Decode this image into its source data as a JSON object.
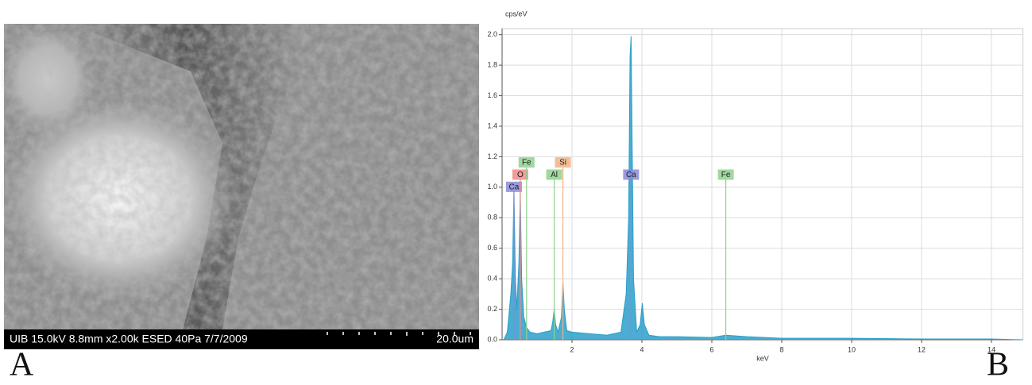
{
  "panel_labels": [
    "A",
    "B"
  ],
  "sem_image": {
    "info": "UIB 15.0kV 8.8mm x2.00k ESED 40Pa 7/7/2009",
    "scale": "20.0um"
  },
  "chart_data": {
    "type": "line",
    "y_label": "cps/eV",
    "x_label": "keV",
    "xlim": [
      0,
      14.9
    ],
    "ylim": [
      0,
      2.04
    ],
    "xticks": [
      2,
      4,
      6,
      8,
      10,
      12,
      14
    ],
    "yticks": [
      {
        "value": 0,
        "label": "0.0"
      },
      {
        "value": 0.2,
        "label": "0.2"
      },
      {
        "value": 0.4,
        "label": "0.4"
      },
      {
        "value": 0.6,
        "label": "0.6"
      },
      {
        "value": 0.8,
        "label": "0.8"
      },
      {
        "value": 1.0,
        "label": "1.0"
      },
      {
        "value": 1.2,
        "label": "1.2"
      },
      {
        "value": 1.4,
        "label": "1.4"
      },
      {
        "value": 1.6,
        "label": "1.6"
      },
      {
        "value": 1.8,
        "label": "1.8"
      },
      {
        "value": 2.0,
        "label": "2.0"
      }
    ],
    "grid": true,
    "series": [
      {
        "color": "#2a9fc9",
        "x": [
          0.05,
          0.15,
          0.25,
          0.3,
          0.34,
          0.38,
          0.42,
          0.48,
          0.52,
          0.56,
          0.62,
          0.7,
          0.8,
          1.0,
          1.2,
          1.4,
          1.45,
          1.49,
          1.53,
          1.6,
          1.7,
          1.74,
          1.78,
          1.85,
          2.0,
          2.5,
          3.0,
          3.4,
          3.55,
          3.62,
          3.66,
          3.69,
          3.72,
          3.76,
          3.85,
          3.95,
          4.01,
          4.07,
          4.2,
          4.5,
          5.0,
          6.0,
          6.4,
          7.0,
          8.0,
          10,
          12,
          14,
          14.9
        ],
        "values": [
          0,
          0.05,
          0.3,
          0.5,
          0.98,
          0.4,
          0.2,
          0.5,
          0.97,
          0.4,
          0.15,
          0.08,
          0.05,
          0.04,
          0.05,
          0.06,
          0.12,
          0.2,
          0.1,
          0.05,
          0.15,
          0.38,
          0.2,
          0.06,
          0.05,
          0.04,
          0.03,
          0.05,
          0.3,
          0.8,
          1.85,
          1.99,
          1.3,
          0.4,
          0.05,
          0.1,
          0.24,
          0.1,
          0.03,
          0.02,
          0.02,
          0.015,
          0.03,
          0.02,
          0.01,
          0.01,
          0.005,
          0.005,
          0
        ]
      }
    ],
    "annotations": [
      {
        "label": "Ca",
        "x": 0.34,
        "y": 1.0,
        "color": "#8a8ad8"
      },
      {
        "label": "O",
        "x": 0.52,
        "y": 1.08,
        "color": "#f08a8a"
      },
      {
        "label": "Fe",
        "x": 0.7,
        "y": 1.16,
        "color": "#8fd18f"
      },
      {
        "label": "Al",
        "x": 1.49,
        "y": 1.08,
        "color": "#8fd18f"
      },
      {
        "label": "Si",
        "x": 1.74,
        "y": 1.16,
        "color": "#f4b183"
      },
      {
        "label": "Ca",
        "x": 3.69,
        "y": 1.08,
        "color": "#8a8ad8"
      },
      {
        "label": "Fe",
        "x": 6.4,
        "y": 1.08,
        "color": "#8fd18f"
      }
    ]
  }
}
